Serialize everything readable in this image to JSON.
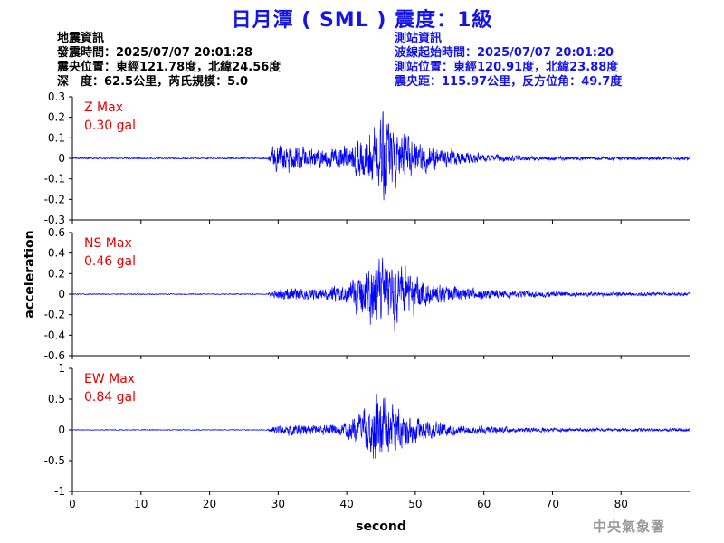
{
  "header": {
    "title": "日月潭 ( SML ) 震度：1級"
  },
  "earthquake_info": {
    "heading": "地震資訊",
    "origin_time": "發震時間：2025/07/07 20:01:28",
    "epicenter": "震央位置：東經121.78度，北緯24.56度",
    "depth_magnitude": "深　度：62.5公里，芮氏規模：5.0"
  },
  "station_info": {
    "heading": "測站資訊",
    "wave_start": "波線起始時間：2025/07/07 20:01:20",
    "station_location": "測站位置：東經120.91度，北緯23.88度",
    "distance_azimuth": "震央距：115.97公里，反方位角：49.7度"
  },
  "watermark": "中央氣象署",
  "colors": {
    "title": "#1414e6",
    "trace": "#0000ff",
    "max_label": "#e60000",
    "station_text": "#1414e6"
  },
  "chart_data": {
    "type": "line",
    "xlabel": "second",
    "ylabel": "acceleration",
    "xlim": [
      0,
      90
    ],
    "xticks": [
      0,
      10,
      20,
      30,
      40,
      50,
      60,
      70,
      80
    ],
    "panels": [
      {
        "name": "Z",
        "max_label": "Z Max",
        "max_value": "0.30 gal",
        "ylim": [
          -0.3,
          0.3
        ],
        "yticks": [
          "0.3",
          "0.2",
          "0.1",
          "0",
          "-0.1",
          "-0.2",
          "-0.3"
        ],
        "ytick_values": [
          0.3,
          0.2,
          0.1,
          0,
          -0.1,
          -0.2,
          -0.3
        ],
        "envelope": [
          [
            0,
            0.004
          ],
          [
            28.5,
            0.004
          ],
          [
            29.2,
            0.07
          ],
          [
            30,
            0.08
          ],
          [
            34,
            0.06
          ],
          [
            38,
            0.06
          ],
          [
            41,
            0.1
          ],
          [
            43,
            0.16
          ],
          [
            45,
            0.25
          ],
          [
            46,
            0.29
          ],
          [
            48,
            0.13
          ],
          [
            52,
            0.07
          ],
          [
            58,
            0.03
          ],
          [
            65,
            0.015
          ],
          [
            75,
            0.01
          ],
          [
            90,
            0.01
          ]
        ]
      },
      {
        "name": "NS",
        "max_label": "NS Max",
        "max_value": "0.46 gal",
        "ylim": [
          -0.6,
          0.6
        ],
        "yticks": [
          "0.6",
          "0.4",
          "0.2",
          "0",
          "-0.2",
          "-0.4",
          "-0.6"
        ],
        "ytick_values": [
          0.6,
          0.4,
          0.2,
          0,
          -0.2,
          -0.4,
          -0.6
        ],
        "envelope": [
          [
            0,
            0.006
          ],
          [
            28.5,
            0.006
          ],
          [
            29.2,
            0.05
          ],
          [
            32,
            0.08
          ],
          [
            36,
            0.07
          ],
          [
            40,
            0.12
          ],
          [
            43,
            0.32
          ],
          [
            45,
            0.42
          ],
          [
            47,
            0.37
          ],
          [
            50,
            0.22
          ],
          [
            53,
            0.12
          ],
          [
            58,
            0.07
          ],
          [
            65,
            0.04
          ],
          [
            75,
            0.025
          ],
          [
            90,
            0.02
          ]
        ]
      },
      {
        "name": "EW",
        "max_label": "EW Max",
        "max_value": "0.84 gal",
        "ylim": [
          -1,
          1
        ],
        "yticks": [
          "1",
          "0.5",
          "0",
          "-0.5",
          "-1"
        ],
        "ytick_values": [
          1,
          0.5,
          0,
          -0.5,
          -1
        ],
        "envelope": [
          [
            0,
            0.008
          ],
          [
            28.5,
            0.008
          ],
          [
            29.2,
            0.07
          ],
          [
            32,
            0.1
          ],
          [
            36,
            0.09
          ],
          [
            40,
            0.15
          ],
          [
            43,
            0.45
          ],
          [
            44.5,
            0.8
          ],
          [
            46,
            0.65
          ],
          [
            48,
            0.38
          ],
          [
            52,
            0.18
          ],
          [
            58,
            0.08
          ],
          [
            65,
            0.05
          ],
          [
            75,
            0.03
          ],
          [
            90,
            0.03
          ]
        ]
      }
    ]
  }
}
